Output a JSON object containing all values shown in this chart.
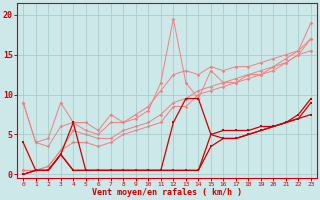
{
  "x": [
    0,
    1,
    2,
    3,
    4,
    5,
    6,
    7,
    8,
    9,
    10,
    11,
    12,
    13,
    14,
    15,
    16,
    17,
    18,
    19,
    20,
    21,
    22,
    23
  ],
  "lines_light": [
    [
      9.0,
      4.0,
      4.5,
      9.0,
      6.5,
      6.5,
      5.5,
      7.5,
      6.5,
      7.0,
      8.0,
      11.5,
      19.5,
      11.5,
      9.5,
      13.0,
      11.5,
      11.5,
      12.0,
      12.5,
      13.5,
      14.5,
      15.5,
      19.0
    ],
    [
      9.0,
      4.0,
      3.5,
      6.0,
      6.5,
      5.5,
      5.0,
      6.5,
      6.5,
      7.5,
      8.5,
      10.5,
      12.5,
      13.0,
      12.5,
      13.5,
      13.0,
      13.5,
      13.5,
      14.0,
      14.5,
      15.0,
      15.5,
      17.0
    ],
    [
      0.5,
      0.5,
      1.0,
      3.0,
      5.5,
      5.0,
      4.5,
      4.5,
      5.5,
      6.0,
      6.5,
      7.5,
      9.0,
      9.5,
      10.5,
      11.0,
      11.5,
      12.0,
      12.5,
      13.0,
      13.5,
      14.0,
      15.0,
      15.5
    ],
    [
      0.5,
      0.5,
      1.0,
      3.0,
      4.0,
      4.0,
      3.5,
      4.0,
      5.0,
      5.5,
      6.0,
      6.5,
      8.5,
      8.5,
      10.0,
      10.5,
      11.0,
      11.5,
      12.5,
      12.5,
      13.0,
      14.0,
      15.0,
      17.0
    ]
  ],
  "lines_dark": [
    [
      4.0,
      0.5,
      0.5,
      2.5,
      6.5,
      0.5,
      0.5,
      0.5,
      0.5,
      0.5,
      0.5,
      0.5,
      6.5,
      9.5,
      9.5,
      5.0,
      4.5,
      4.5,
      5.0,
      5.5,
      6.0,
      6.5,
      7.5,
      9.5
    ],
    [
      0.0,
      0.5,
      0.5,
      2.5,
      0.5,
      0.5,
      0.5,
      0.5,
      0.5,
      0.5,
      0.5,
      0.5,
      0.5,
      0.5,
      0.5,
      5.0,
      5.5,
      5.5,
      5.5,
      6.0,
      6.0,
      6.5,
      7.0,
      7.5
    ],
    [
      0.0,
      0.5,
      0.5,
      2.5,
      0.5,
      0.5,
      0.5,
      0.5,
      0.5,
      0.5,
      0.5,
      0.5,
      0.5,
      0.5,
      0.5,
      3.5,
      4.5,
      4.5,
      5.0,
      5.5,
      6.0,
      6.5,
      7.0,
      9.0
    ]
  ],
  "color_light": "#f08080",
  "color_dark": "#cc0000",
  "bg_color": "#cce8e8",
  "grid_color": "#aacccc",
  "axis_color": "#cc0000",
  "xlabel": "Vent moyen/en rafales ( km/h )",
  "yticks": [
    0,
    5,
    10,
    15,
    20
  ],
  "xticks": [
    0,
    1,
    2,
    3,
    4,
    5,
    6,
    7,
    8,
    9,
    10,
    11,
    12,
    13,
    14,
    15,
    16,
    17,
    18,
    19,
    20,
    21,
    22,
    23
  ],
  "ylim": [
    -0.5,
    21.5
  ],
  "xlim": [
    -0.5,
    23.5
  ]
}
